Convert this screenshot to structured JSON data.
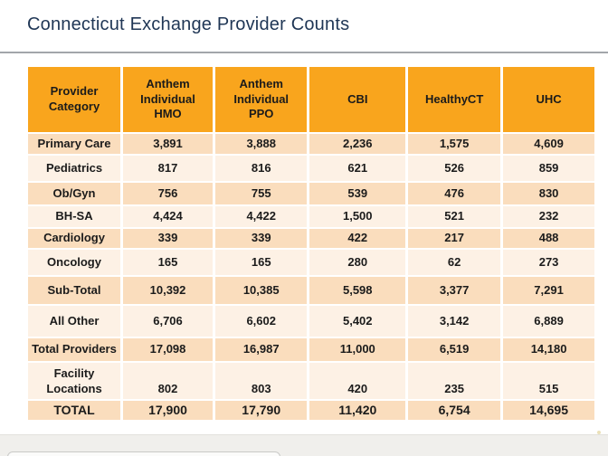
{
  "page": {
    "title": "Connecticut Exchange Provider Counts"
  },
  "colors": {
    "header_bg": "#F9A51D",
    "row_band_dark": "#FADDBD",
    "row_band_light": "#FDF1E5",
    "title_text": "#1F3655"
  },
  "table": {
    "columns": [
      "Provider\nCategory",
      "Anthem\nIndividual\nHMO",
      "Anthem\nIndividual\nPPO",
      "CBI",
      "HealthyCT",
      "UHC"
    ],
    "rows": [
      {
        "category": "Primary Care",
        "values": [
          "3,891",
          "3,888",
          "2,236",
          "1,575",
          "4,609"
        ]
      },
      {
        "category": "Pediatrics",
        "values": [
          "817",
          "816",
          "621",
          "526",
          "859"
        ]
      },
      {
        "category": "Ob/Gyn",
        "values": [
          "756",
          "755",
          "539",
          "476",
          "830"
        ]
      },
      {
        "category": "BH-SA",
        "values": [
          "4,424",
          "4,422",
          "1,500",
          "521",
          "232"
        ]
      },
      {
        "category": "Cardiology",
        "values": [
          "339",
          "339",
          "422",
          "217",
          "488"
        ]
      },
      {
        "category": "Oncology",
        "values": [
          "165",
          "165",
          "280",
          "62",
          "273"
        ]
      },
      {
        "category": "Sub-Total",
        "values": [
          "10,392",
          "10,385",
          "5,598",
          "3,377",
          "7,291"
        ]
      },
      {
        "category": "All Other",
        "values": [
          "6,706",
          "6,602",
          "5,402",
          "3,142",
          "6,889"
        ]
      },
      {
        "category": "Total Providers",
        "values": [
          "17,098",
          "16,987",
          "11,000",
          "6,519",
          "14,180"
        ]
      },
      {
        "category": "Facility\nLocations",
        "values": [
          "802",
          "803",
          "420",
          "235",
          "515"
        ]
      },
      {
        "category": "TOTAL",
        "values": [
          "17,900",
          "17,790",
          "11,420",
          "6,754",
          "14,695"
        ]
      }
    ]
  }
}
